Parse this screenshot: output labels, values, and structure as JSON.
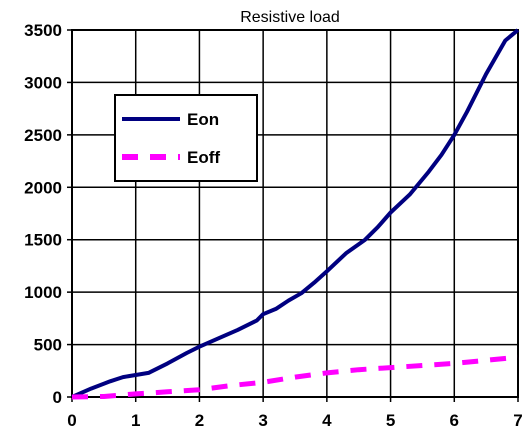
{
  "chart_data": {
    "type": "line",
    "title": "Resistive load",
    "xlabel": "",
    "ylabel": "",
    "xlim": [
      0,
      7
    ],
    "ylim": [
      0,
      3500
    ],
    "x_ticks": [
      "0",
      "1",
      "2",
      "3",
      "4",
      "5",
      "6",
      "7"
    ],
    "y_ticks": [
      "0",
      "500",
      "1000",
      "1500",
      "2000",
      "2500",
      "3000",
      "3500"
    ],
    "grid": true,
    "legend": "upper-left inside plot",
    "series": [
      {
        "name": "Eon",
        "color": "#000080",
        "style": "solid",
        "points": [
          [
            0,
            0
          ],
          [
            0.3,
            80
          ],
          [
            0.6,
            150
          ],
          [
            0.8,
            190
          ],
          [
            1.0,
            210
          ],
          [
            1.2,
            230
          ],
          [
            1.5,
            320
          ],
          [
            1.8,
            420
          ],
          [
            2.0,
            480
          ],
          [
            2.3,
            560
          ],
          [
            2.6,
            640
          ],
          [
            2.9,
            730
          ],
          [
            3.0,
            790
          ],
          [
            3.2,
            840
          ],
          [
            3.4,
            920
          ],
          [
            3.6,
            990
          ],
          [
            3.8,
            1090
          ],
          [
            4.0,
            1200
          ],
          [
            4.3,
            1370
          ],
          [
            4.6,
            1500
          ],
          [
            4.8,
            1620
          ],
          [
            5.0,
            1760
          ],
          [
            5.3,
            1930
          ],
          [
            5.6,
            2150
          ],
          [
            5.8,
            2310
          ],
          [
            6.0,
            2500
          ],
          [
            6.2,
            2720
          ],
          [
            6.5,
            3080
          ],
          [
            6.8,
            3400
          ],
          [
            7.0,
            3500
          ]
        ]
      },
      {
        "name": "Eoff",
        "color": "#FF00FF",
        "style": "dashed",
        "points": [
          [
            0,
            0
          ],
          [
            0.5,
            5
          ],
          [
            0.8,
            20
          ],
          [
            1.0,
            30
          ],
          [
            1.5,
            50
          ],
          [
            2.0,
            70
          ],
          [
            2.5,
            110
          ],
          [
            3.0,
            140
          ],
          [
            3.5,
            190
          ],
          [
            4.0,
            230
          ],
          [
            4.5,
            260
          ],
          [
            5.0,
            280
          ],
          [
            5.5,
            300
          ],
          [
            6.0,
            320
          ],
          [
            6.5,
            350
          ],
          [
            7.0,
            380
          ]
        ]
      }
    ]
  }
}
